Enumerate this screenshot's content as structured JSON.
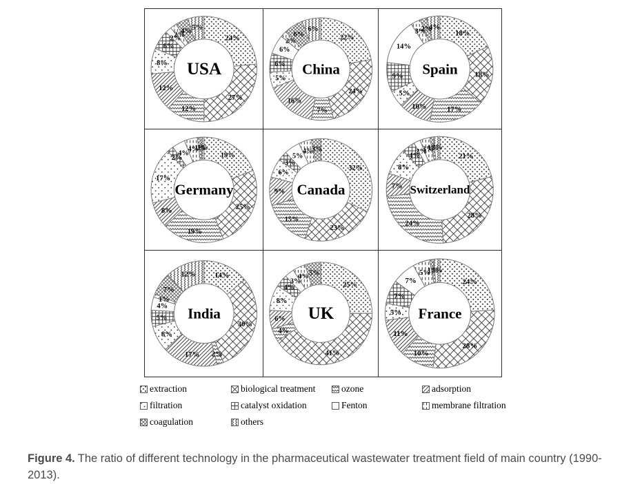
{
  "figure": {
    "caption_prefix": "Figure 4.",
    "caption_text": "The ratio of different technology in the pharmaceutical wastewater treatment field of main country (1990-2013)."
  },
  "legend": {
    "items": [
      {
        "label": "extraction",
        "pattern": "extraction"
      },
      {
        "label": "biological treatment",
        "pattern": "biological"
      },
      {
        "label": "ozone",
        "pattern": "ozone"
      },
      {
        "label": "adsorption",
        "pattern": "adsorption"
      },
      {
        "label": "filtration",
        "pattern": "filtration"
      },
      {
        "label": "catalyst oxidation",
        "pattern": "catalyst"
      },
      {
        "label": "Fenton",
        "pattern": "fenton"
      },
      {
        "label": "membrane filtration",
        "pattern": "membrane"
      },
      {
        "label": "coagulation",
        "pattern": "coagulation"
      },
      {
        "label": "others",
        "pattern": "others"
      }
    ]
  },
  "chart_data": {
    "type": "pie",
    "variant": "donut",
    "start_angle_deg": 0,
    "direction": "clockwise",
    "title": "The ratio of different technology in the pharmaceutical wastewater treatment field of main country (1990-2013)",
    "categories": [
      "extraction",
      "biological treatment",
      "ozone",
      "adsorption",
      "filtration",
      "catalyst oxidation",
      "Fenton",
      "membrane filtration",
      "coagulation",
      "others"
    ],
    "pies": [
      {
        "name": "USA",
        "values": [
          24,
          27,
          12,
          12,
          8,
          6,
          2,
          2,
          4,
          5
        ],
        "labels": [
          "24%",
          "27%",
          "12%",
          "12%",
          "8%",
          "6%",
          "2%",
          "2%",
          "4%",
          "5%"
        ]
      },
      {
        "name": "China",
        "values": [
          22,
          24,
          7,
          16,
          5,
          6,
          6,
          2,
          6,
          6
        ],
        "labels": [
          "22%",
          "24%",
          "7%",
          "16%",
          "5%",
          "6%",
          "6%",
          "2%",
          "6%",
          "6%"
        ]
      },
      {
        "name": "Spain",
        "values": [
          18,
          18,
          17,
          10,
          5,
          9,
          14,
          3,
          2,
          4
        ],
        "labels": [
          "18%",
          "18%",
          "17%",
          "10%",
          "5%",
          "9%",
          "14%",
          "3%",
          "2%",
          "4%"
        ]
      },
      {
        "name": "Germany",
        "values": [
          19,
          25,
          19,
          8,
          17,
          2,
          4,
          4,
          1,
          1
        ],
        "labels": [
          "19%",
          "25%",
          "19%",
          "8%",
          "17%",
          "2%",
          "4%",
          "4%",
          "1%",
          "1%"
        ]
      },
      {
        "name": "Canada",
        "values": [
          32,
          23,
          15,
          9,
          6,
          3,
          5,
          4,
          3,
          0
        ],
        "labels": [
          "32%",
          "23%",
          "15%",
          "9%",
          "6%",
          "3%",
          "5%",
          "4%",
          "3%",
          ""
        ]
      },
      {
        "name": "Switzerland",
        "values": [
          21,
          28,
          24,
          7,
          8,
          4,
          2,
          3,
          1,
          2
        ],
        "labels": [
          "21%",
          "28%",
          "24%",
          "7%",
          "8%",
          "4%",
          "2%",
          "3%",
          "1%",
          "2%"
        ]
      },
      {
        "name": "India",
        "values": [
          14,
          30,
          2,
          17,
          8,
          5,
          4,
          1,
          7,
          12
        ],
        "labels": [
          "14%",
          "30%",
          "2%",
          "17%",
          "8%",
          "5%",
          "4%",
          "1%",
          "7%",
          "12%"
        ]
      },
      {
        "name": "UK",
        "values": [
          25,
          41,
          4,
          6,
          8,
          4,
          3,
          4,
          5,
          0
        ],
        "labels": [
          "25%",
          "41%",
          "4%",
          "6%",
          "8%",
          "4%",
          "3%",
          "4%",
          "5%",
          ""
        ]
      },
      {
        "name": "France",
        "values": [
          24,
          28,
          10,
          11,
          5,
          7,
          7,
          5,
          1,
          2
        ],
        "labels": [
          "24%",
          "28%",
          "10%",
          "11%",
          "5%",
          "7%",
          "7%",
          "5%",
          "1%",
          "2%"
        ]
      }
    ]
  }
}
